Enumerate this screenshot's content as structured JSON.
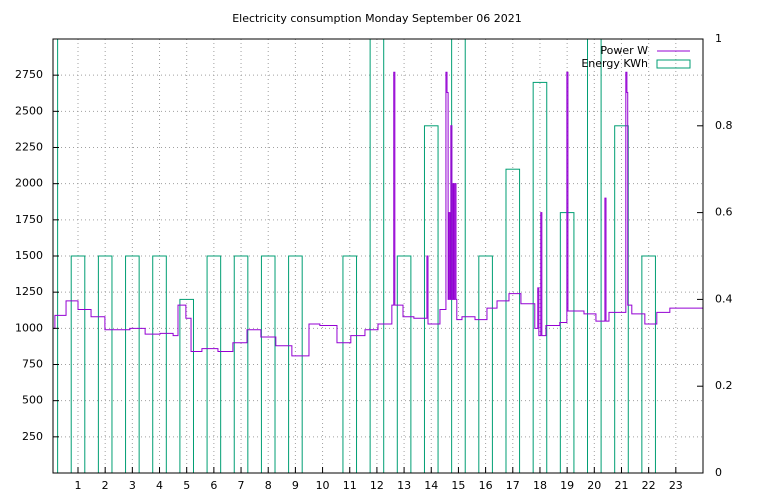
{
  "chart_data": {
    "type": "line",
    "title": "Electricity consumption Monday September 06 2021",
    "xlim": [
      0.08,
      24
    ],
    "xticks": [
      1,
      2,
      3,
      4,
      5,
      6,
      7,
      8,
      9,
      10,
      11,
      12,
      13,
      14,
      15,
      16,
      17,
      18,
      19,
      20,
      21,
      22,
      23
    ],
    "ylim": [
      0,
      3000
    ],
    "yticks": [
      250,
      500,
      750,
      1000,
      1250,
      1500,
      1750,
      2000,
      2250,
      2500,
      2750
    ],
    "y2lim": [
      0,
      1
    ],
    "y2ticks": [
      0,
      0.2,
      0.4,
      0.6,
      0.8,
      1
    ],
    "grid": true,
    "legend": "top-right",
    "series": [
      {
        "name": "Power W",
        "color": "#9400d3",
        "style": "steps",
        "x": [
          0.08,
          0.15,
          0.56,
          1.0,
          1.48,
          1.99,
          2.91,
          3.47,
          4.02,
          4.5,
          4.68,
          4.97,
          5.16,
          5.56,
          6.15,
          6.7,
          7.22,
          7.73,
          8.28,
          8.87,
          9.5,
          9.9,
          10.53,
          11.04,
          11.56,
          12.04,
          12.55,
          12.62,
          12.66,
          12.96,
          13.36,
          13.84,
          13.88,
          14.32,
          14.54,
          14.58,
          14.62,
          14.65,
          14.69,
          14.72,
          14.76,
          14.8,
          14.83,
          14.87,
          14.91,
          14.94,
          15.13,
          15.61,
          16.05,
          16.42,
          16.86,
          17.3,
          17.81,
          17.92,
          17.96,
          18.03,
          18.07,
          18.22,
          18.73,
          18.99,
          19.03,
          19.62,
          20.06,
          20.39,
          20.43,
          20.54,
          21.16,
          21.2,
          21.23,
          21.38,
          21.86,
          22.3,
          22.78,
          24
        ],
        "values": [
          1000,
          1090,
          1190,
          1130,
          1080,
          990,
          1000,
          960,
          965,
          950,
          1160,
          1070,
          840,
          860,
          840,
          900,
          990,
          940,
          880,
          810,
          1030,
          1020,
          900,
          950,
          990,
          1030,
          1160,
          2770,
          1160,
          1080,
          1070,
          1500,
          1030,
          1130,
          2770,
          2630,
          1200,
          1800,
          1200,
          2400,
          1200,
          2000,
          1200,
          2000,
          1200,
          1060,
          1080,
          1060,
          1140,
          1190,
          1240,
          1170,
          1000,
          1280,
          950,
          1800,
          950,
          1020,
          1040,
          2770,
          1120,
          1100,
          1050,
          1900,
          1050,
          1110,
          2770,
          2630,
          1160,
          1100,
          1030,
          1110,
          1140,
          1140
        ]
      },
      {
        "name": "Energy KWh",
        "color": "#009e73",
        "style": "boxes",
        "axis": "y2",
        "x": [
          0,
          1,
          2,
          3,
          4,
          5,
          6,
          7,
          8,
          9,
          10,
          11,
          12,
          13,
          14,
          15,
          16,
          17,
          18,
          19,
          20,
          21,
          22,
          23
        ],
        "values": [
          1.1,
          0.5,
          0.5,
          0.5,
          0.5,
          0.4,
          0.5,
          0.5,
          0.5,
          0.5,
          0,
          0.5,
          1.1,
          0.5,
          0.8,
          1.1,
          0.5,
          0.7,
          0.9,
          0.6,
          1.1,
          0.8,
          0.5,
          0
        ]
      }
    ]
  }
}
